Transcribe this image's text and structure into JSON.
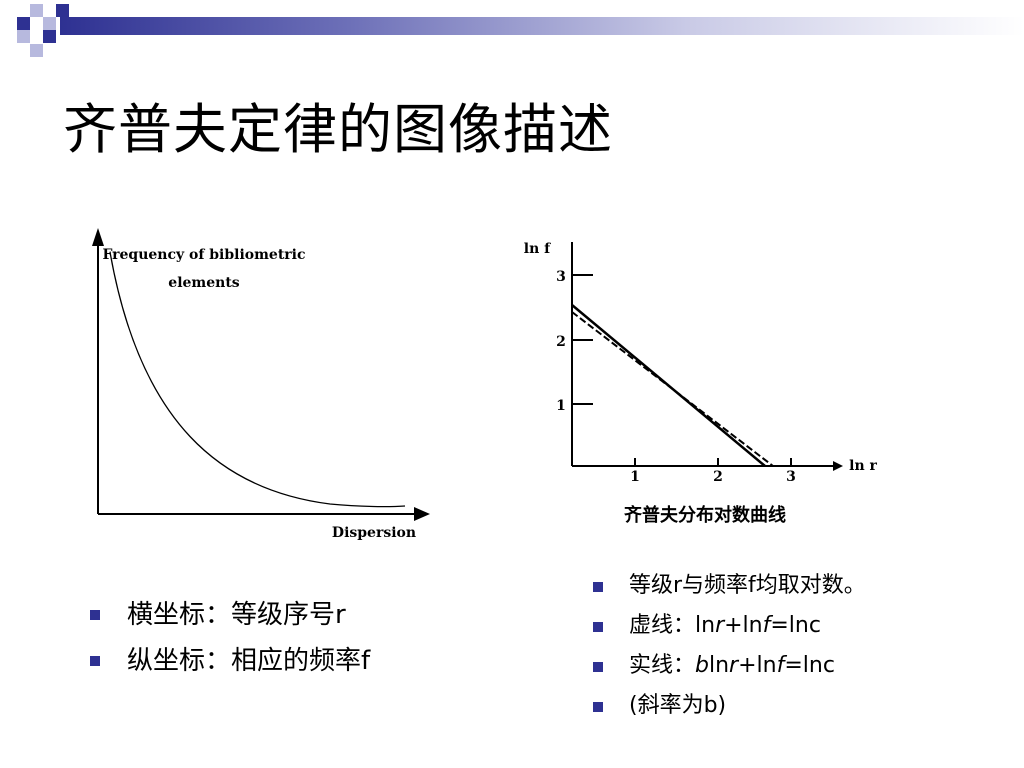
{
  "title": "齐普夫定律的图像描述",
  "colors": {
    "accent": "#2e3192",
    "accent_light": "#b7b9de",
    "bullet": "#2e3192"
  },
  "figure_left": {
    "y_label_line1": "Frequency of bibliometric",
    "y_label_line2": "elements",
    "x_label": "Dispersion"
  },
  "figure_right": {
    "y_axis_label": "ln f",
    "x_axis_label": "ln r",
    "y_ticks": [
      "1",
      "2",
      "3"
    ],
    "x_ticks": [
      "1",
      "2",
      "3"
    ],
    "caption": "齐普夫分布对数曲线"
  },
  "bullets_left": [
    {
      "text": "横坐标：等级序号r"
    },
    {
      "text": "纵坐标：相应的频率f"
    }
  ],
  "bullets_right": [
    {
      "text": "等级r与频率f均取对数。"
    },
    {
      "prefix": "虚线：",
      "p1": "ln",
      "p2": "r",
      "p3": "+ln",
      "p4": "f",
      "p5": "=lnc"
    },
    {
      "prefix": "实线：",
      "p0": "b",
      "p1": "ln",
      "p2": "r",
      "p3": "+ln",
      "p4": "f",
      "p5": "=lnc"
    },
    {
      "text": "(斜率为b)"
    }
  ]
}
